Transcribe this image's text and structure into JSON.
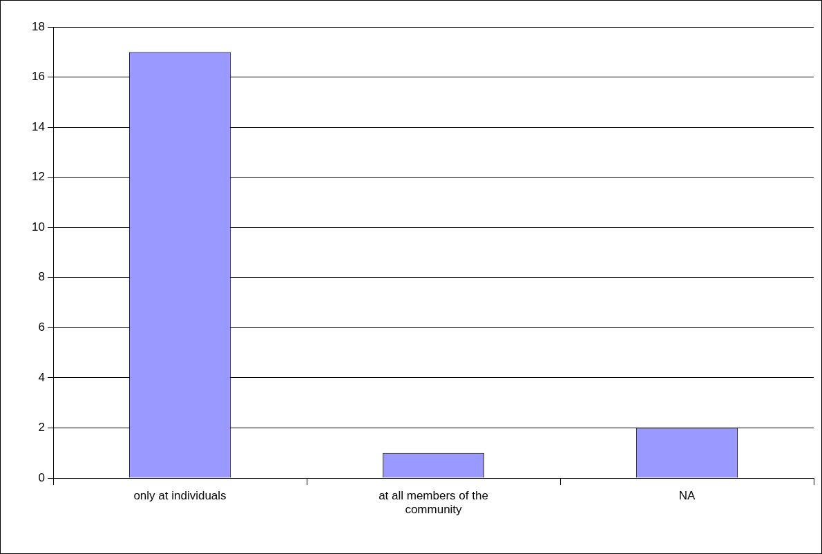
{
  "chart_data": {
    "type": "bar",
    "categories": [
      "only at individuals",
      "at all members of the community",
      "NA"
    ],
    "values": [
      17,
      1,
      2
    ],
    "color": "#9999ff",
    "ylim": [
      0,
      18
    ],
    "yticks": [
      0,
      2,
      4,
      6,
      8,
      10,
      12,
      14,
      16,
      18
    ],
    "grid": "y",
    "legend": false
  }
}
